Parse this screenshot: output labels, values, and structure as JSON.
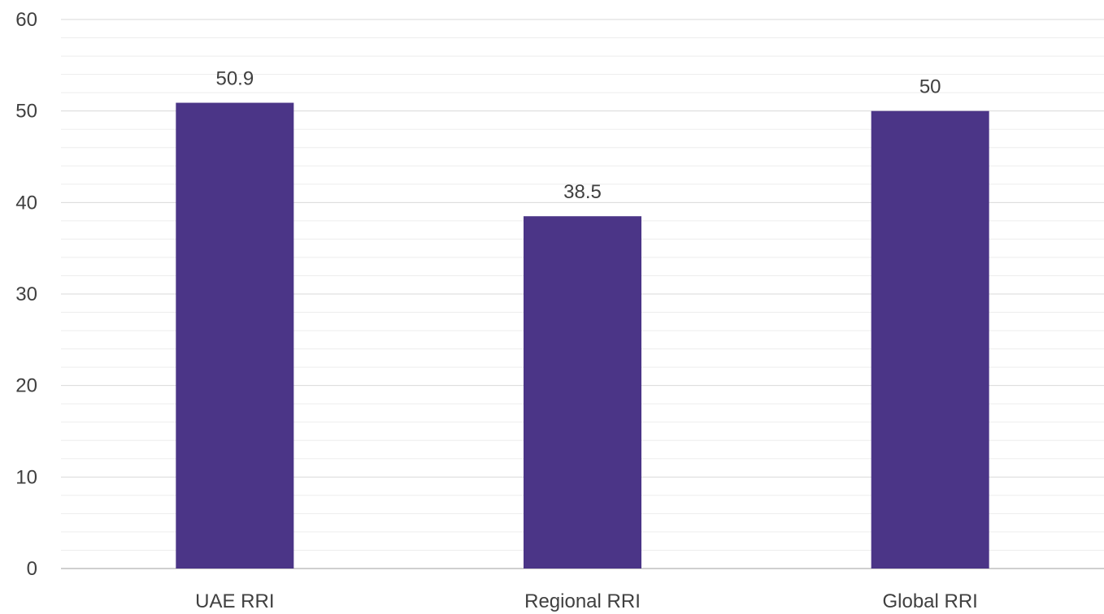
{
  "chart_data": {
    "type": "bar",
    "title": "",
    "xlabel": "",
    "ylabel": "",
    "categories": [
      "UAE RRI",
      "Regional RRI",
      "Global RRI"
    ],
    "values": [
      50.9,
      38.5,
      50
    ],
    "data_labels": [
      "50.9",
      "38.5",
      "50"
    ],
    "ylim": [
      0,
      60
    ],
    "y_ticks": [
      0,
      10,
      20,
      30,
      40,
      50,
      60
    ],
    "y_tick_labels": [
      "0",
      "10",
      "20",
      "30",
      "40",
      "50",
      "60"
    ],
    "minor_gridlines": true,
    "grid": true,
    "legend": "none",
    "colors": {
      "bar": "#4B3587",
      "major_grid": "#D9D9D9",
      "minor_grid": "#EDEDED",
      "axis_line": "#BFBFBF",
      "text": "#404040"
    }
  }
}
